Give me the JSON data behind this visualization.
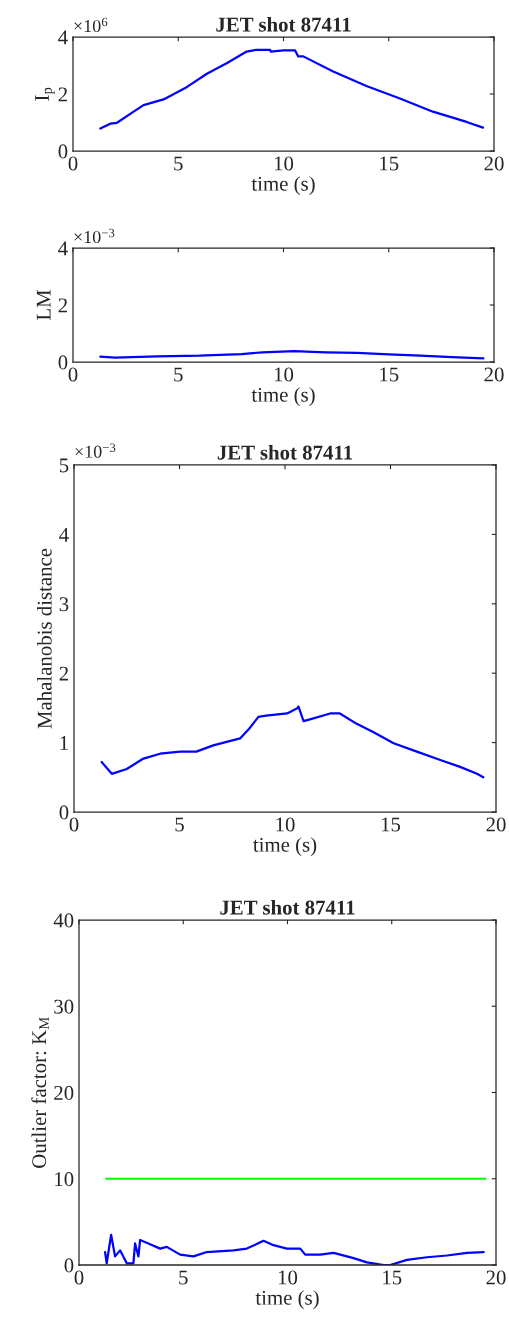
{
  "chart_data": [
    {
      "type": "line",
      "title": "JET shot 87411",
      "xlabel": "time (s)",
      "ylabel": "I$_{p}$",
      "annotations": [
        "×10$^{6}$"
      ],
      "xlim": [
        0,
        20
      ],
      "xticks": [
        0,
        5,
        10,
        15,
        20
      ],
      "ylim": [
        0,
        4
      ],
      "yticks": [
        0,
        2,
        4
      ],
      "series": [
        {
          "color": "#0000ff",
          "x": [
            1.3,
            1.77,
            2.09,
            2.88,
            3.35,
            4.3,
            5.4,
            6.36,
            7.3,
            8.25,
            8.7,
            9.36,
            9.4,
            10.0,
            10.55,
            10.7,
            10.94,
            12.36,
            13.94,
            15.5,
            17.1,
            18.7,
            19.48
          ],
          "values": [
            0.79,
            0.96,
            0.99,
            1.38,
            1.61,
            1.81,
            2.24,
            2.71,
            3.08,
            3.49,
            3.55,
            3.55,
            3.49,
            3.53,
            3.53,
            3.32,
            3.32,
            2.79,
            2.28,
            1.85,
            1.38,
            1.02,
            0.82
          ]
        }
      ]
    },
    {
      "type": "line",
      "xlabel": "time (s)",
      "ylabel": "LM",
      "annotations": [
        "×10$^{−3}$"
      ],
      "xlim": [
        0,
        20
      ],
      "xticks": [
        0,
        5,
        10,
        15,
        20
      ],
      "ylim": [
        0,
        4
      ],
      "yticks": [
        0,
        2,
        4
      ],
      "series": [
        {
          "color": "#0000ff",
          "x": [
            1.3,
            2,
            4,
            6,
            8,
            9,
            10.5,
            12,
            13.5,
            15,
            16.5,
            18,
            19.5
          ],
          "values": [
            0.19,
            0.15,
            0.2,
            0.22,
            0.28,
            0.34,
            0.38,
            0.34,
            0.32,
            0.27,
            0.22,
            0.17,
            0.13
          ]
        }
      ]
    },
    {
      "type": "line",
      "title": "JET shot 87411",
      "xlabel": "time (s)",
      "ylabel": "Mahalanobis distance",
      "annotations": [
        "×10$^{−3}$"
      ],
      "xlim": [
        0,
        20
      ],
      "xticks": [
        0,
        5,
        10,
        15,
        20
      ],
      "ylim": [
        0,
        5
      ],
      "yticks": [
        0,
        1,
        2,
        3,
        4,
        5
      ],
      "series": [
        {
          "color": "#0000ff",
          "x": [
            1.31,
            1.79,
            2.5,
            3.29,
            4.08,
            5.03,
            5.8,
            6.6,
            7.87,
            8.3,
            8.74,
            9.1,
            10.1,
            10.56,
            10.64,
            10.88,
            11.35,
            12.14,
            12.6,
            13.4,
            14.2,
            15.15,
            16.25,
            17.36,
            18.3,
            19.1,
            19.4
          ],
          "values": [
            0.72,
            0.55,
            0.62,
            0.77,
            0.84,
            0.87,
            0.87,
            0.96,
            1.06,
            1.2,
            1.37,
            1.39,
            1.42,
            1.49,
            1.52,
            1.31,
            1.35,
            1.42,
            1.42,
            1.27,
            1.15,
            0.99,
            0.87,
            0.75,
            0.65,
            0.55,
            0.5
          ]
        }
      ]
    },
    {
      "type": "line",
      "title": "JET shot 87411",
      "xlabel": "time (s)",
      "ylabel": "Outlier factor: K$_{M}$",
      "xlim": [
        0,
        20
      ],
      "xticks": [
        0,
        5,
        10,
        15,
        20
      ],
      "ylim": [
        0,
        40
      ],
      "yticks": [
        0,
        10,
        20,
        30,
        40
      ],
      "series": [
        {
          "color": "#0000ff",
          "x": [
            1.25,
            1.33,
            1.54,
            1.73,
            1.97,
            2.29,
            2.61,
            2.69,
            2.85,
            2.93,
            3.33,
            3.89,
            4.21,
            4.85,
            5.49,
            6.13,
            7.41,
            8.05,
            8.85,
            9.33,
            9.97,
            10.61,
            10.85,
            11.57,
            12.21,
            13.17,
            13.81,
            14.61,
            14.93,
            15.73,
            16.69,
            17.65,
            18.61,
            19.41
          ],
          "values": [
            1.5,
            0.2,
            3.5,
            1.0,
            1.7,
            0.2,
            0.2,
            2.5,
            1.0,
            2.9,
            2.5,
            1.9,
            2.1,
            1.2,
            1.0,
            1.5,
            1.7,
            1.9,
            2.8,
            2.3,
            1.9,
            1.9,
            1.2,
            1.2,
            1.4,
            0.8,
            0.3,
            0,
            0,
            0.6,
            0.9,
            1.1,
            1.4,
            1.5
          ]
        },
        {
          "color": "#00ff00",
          "x": [
            1.3,
            19.5
          ],
          "values": [
            10,
            10
          ]
        }
      ]
    }
  ]
}
